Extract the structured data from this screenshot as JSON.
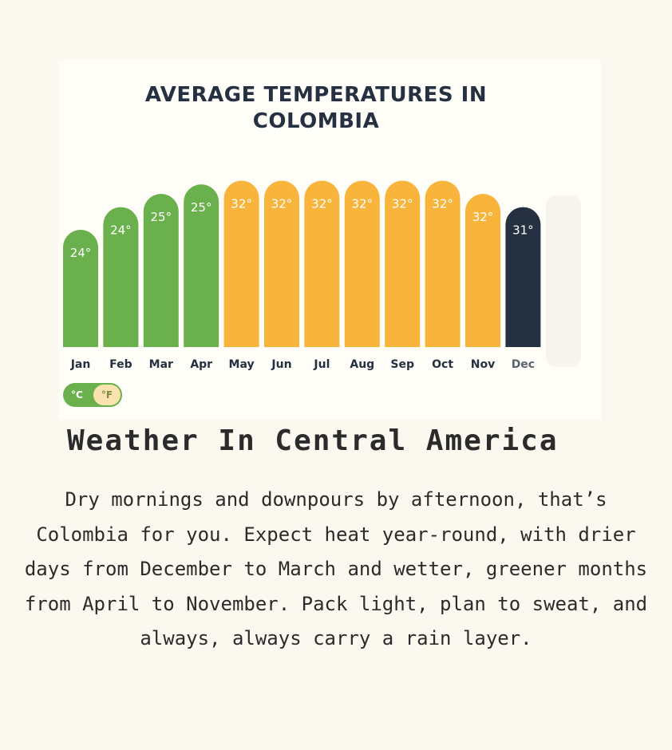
{
  "chart_data": {
    "type": "bar",
    "title_lines": [
      "AVERAGE TEMPERATURES IN",
      "COLOMBIA"
    ],
    "categories": [
      "Jan",
      "Feb",
      "Mar",
      "Apr",
      "May",
      "Jun",
      "Jul",
      "Aug",
      "Sep",
      "Oct",
      "Nov",
      "Dec"
    ],
    "values": [
      24,
      24,
      25,
      25,
      32,
      32,
      32,
      32,
      32,
      32,
      32,
      31
    ],
    "labels": [
      "24°",
      "24°",
      "25°",
      "25°",
      "32°",
      "32°",
      "32°",
      "32°",
      "32°",
      "32°",
      "32°",
      "31°"
    ],
    "heights": [
      0.62,
      0.74,
      0.81,
      0.86,
      0.88,
      0.88,
      0.88,
      0.88,
      0.88,
      0.88,
      0.81,
      0.74
    ],
    "bar_colors": [
      "#6ab04c",
      "#6ab04c",
      "#6ab04c",
      "#6ab04c",
      "#f9b53b",
      "#f9b53b",
      "#f9b53b",
      "#f9b53b",
      "#f9b53b",
      "#f9b53b",
      "#f9b53b",
      "#253041"
    ],
    "selected_index": 11,
    "unit": "°C"
  },
  "toggle": {
    "celsius": "°C",
    "fahrenheit": "°F",
    "active": "°C"
  },
  "colors": {
    "green": "#6ab04c",
    "orange": "#f9b53b",
    "navy": "#253041",
    "background": "#fbf8ef"
  },
  "section": {
    "heading": "Weather In Central America",
    "description": "Dry mornings and downpours by afternoon, that’s Colombia for you. Expect heat year-round, with drier days from December to March and wetter, greener months from April to November. Pack light, plan to sweat, and always, always carry a rain layer."
  }
}
